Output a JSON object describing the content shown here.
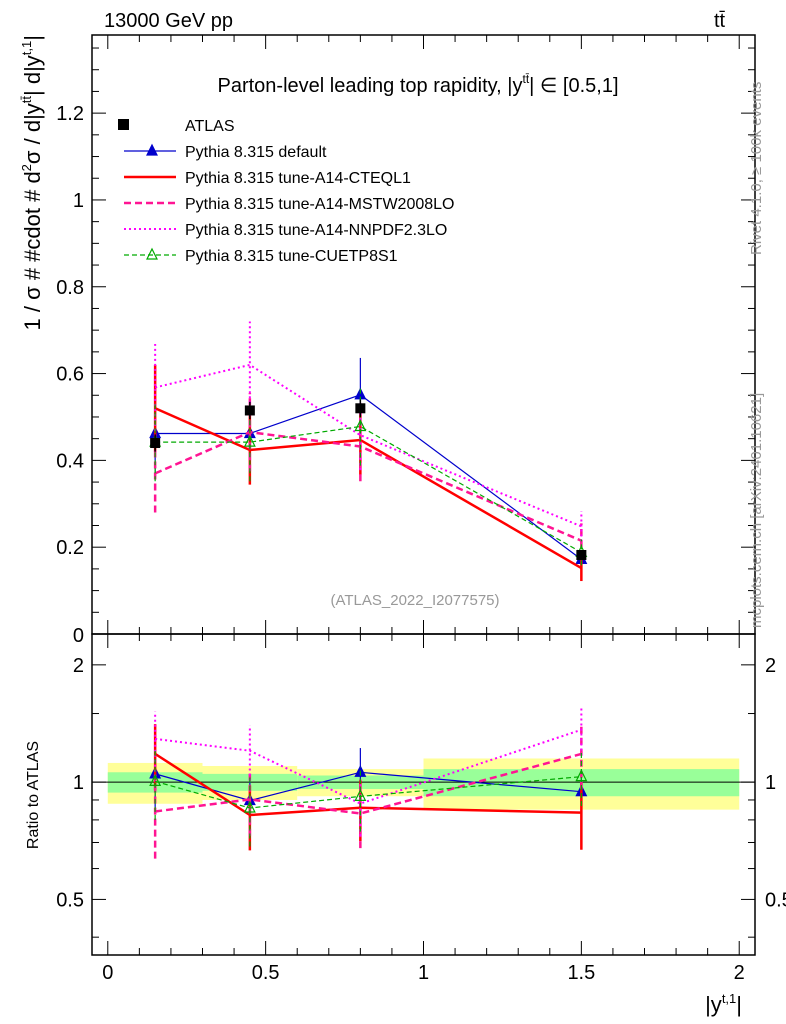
{
  "header": {
    "left": "13000 GeV pp",
    "right": "tt̄"
  },
  "side_labels": {
    "rivet": "Rivet 4.1.0, ≥ 100k events",
    "mcplots": "mcplots.cern.ch [arXiv:2401.10621]"
  },
  "chart_data": {
    "type": "scatter",
    "title": "Parton-level leading top rapidity, |y^{tt̄}| ∈ [0.5,1]",
    "title_main": "Parton-level leading top rapidity, |y",
    "title_sup": "tt̄",
    "title_tail": "| ∈ [0.5,1]",
    "analysis_tag": "(ATLAS_2022_I2077575)",
    "ylabel": "1 / σ # #cdot # d²σ / d|y^{tt̄}| d|y^{t,1}|",
    "ylabel_text": "1 / σ # #cdot # d",
    "ylabel_text2": "σ / d|y",
    "ylabel_text3": "| d|y",
    "ylabel_sup1": "2",
    "ylabel_sup2": "tt̄",
    "ylabel_sup3": "t,1",
    "ylabel_end": "|",
    "xlabel": "|y^{t,1}|",
    "xlabel_text": "|y",
    "xlabel_sup": "t,1",
    "xlabel_end": "|",
    "ratio_ylabel": "Ratio to ATLAS",
    "xlim": [
      -0.05,
      2.05
    ],
    "ylim": [
      0,
      1.38
    ],
    "ratio_ylim": [
      0.36,
      2.4
    ],
    "x_ticks": [
      "0",
      "0.5",
      "1",
      "1.5",
      "2"
    ],
    "y_ticks": [
      "0",
      "0.2",
      "0.4",
      "0.6",
      "0.8",
      "1",
      "1.2"
    ],
    "ratio_ticks": [
      "0.5",
      "1",
      "2"
    ],
    "bins": [
      [
        0,
        0.3
      ],
      [
        0.3,
        0.6
      ],
      [
        0.6,
        1.0
      ],
      [
        1.0,
        2.0
      ]
    ],
    "x": [
      0.15,
      0.45,
      0.8,
      1.5
    ],
    "data": {
      "name": "ATLAS",
      "values": [
        0.44,
        0.515,
        0.52,
        0.182
      ],
      "errors": [
        0.02,
        0.02,
        0.02,
        0.01
      ],
      "band_inner": [
        0.06,
        0.05,
        0.04,
        0.08
      ],
      "band_outer": [
        0.12,
        0.1,
        0.08,
        0.15
      ]
    },
    "series": [
      {
        "name": "Pythia 8.315 default",
        "color": "#0000cc",
        "style": "solid",
        "marker": "triangle",
        "values": [
          0.462,
          0.462,
          0.551,
          0.172
        ],
        "errors": [
          0.09,
          0.08,
          0.085,
          0.02
        ]
      },
      {
        "name": "Pythia 8.315 tune-A14-CTEQL1",
        "color": "#ff0000",
        "style": "solid-thick",
        "marker": "none",
        "values": [
          0.52,
          0.424,
          0.447,
          0.152
        ],
        "errors": [
          0.1,
          0.08,
          0.08,
          0.03
        ]
      },
      {
        "name": "Pythia 8.315 tune-A14-MSTW2008LO",
        "color": "#ff1493",
        "style": "dashed",
        "marker": "none",
        "values": [
          0.37,
          0.465,
          0.432,
          0.215
        ],
        "errors": [
          0.09,
          0.09,
          0.08,
          0.04
        ]
      },
      {
        "name": "Pythia 8.315 tune-A14-NNPDF2.3LO",
        "color": "#ff00ff",
        "style": "dotted",
        "marker": "none",
        "values": [
          0.568,
          0.62,
          0.458,
          0.248
        ],
        "errors": [
          0.1,
          0.1,
          0.08,
          0.035
        ]
      },
      {
        "name": "Pythia 8.315 tune-CUETP8S1",
        "color": "#00aa00",
        "style": "dashed-thin",
        "marker": "open-triangle",
        "values": [
          0.442,
          0.442,
          0.478,
          0.188
        ],
        "errors": [
          0.09,
          0.09,
          0.09,
          0.03
        ]
      }
    ]
  }
}
